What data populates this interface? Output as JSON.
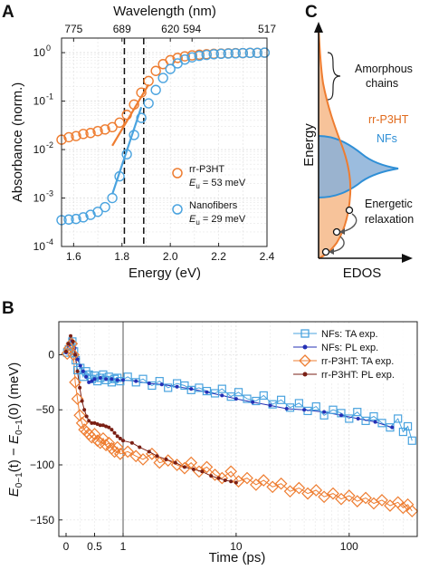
{
  "chart_data": [
    {
      "panel": "A",
      "type": "scatter",
      "xlabel": "Energy (eV)",
      "ylabel": "Absorbance (norm.)",
      "top_axis_label": "Wavelength (nm)",
      "top_ticks": [
        "775",
        "689",
        "620",
        "594",
        "517"
      ],
      "top_tick_energies": [
        1.6,
        1.8,
        2.0,
        2.09,
        2.4
      ],
      "xlim": [
        1.55,
        2.4
      ],
      "ylim": [
        0.0001,
        2
      ],
      "yscale": "log",
      "xticks": [
        "1.6",
        "1.8",
        "2.0",
        "2.2",
        "2.4"
      ],
      "xtick_values": [
        1.6,
        1.8,
        2.0,
        2.2,
        2.4
      ],
      "yticks": [
        "10",
        "10",
        "10",
        "10",
        "10"
      ],
      "ytick_exponents": [
        "-4",
        "-3",
        "-2",
        "-1",
        "0"
      ],
      "ytick_values": [
        0.0001,
        0.001,
        0.01,
        0.1,
        1
      ],
      "dashed_lines_x": [
        1.81,
        1.89
      ],
      "grid": true,
      "legend_placement": "lower-right",
      "series": [
        {
          "name": "rr-P3HT",
          "legend_line2_prefix": "E",
          "legend_line2_sub": "u",
          "legend_line2_rest": " = 53 meV",
          "color": "#ee7d31",
          "x": [
            1.55,
            1.58,
            1.61,
            1.64,
            1.67,
            1.7,
            1.73,
            1.76,
            1.79,
            1.82,
            1.85,
            1.88,
            1.91,
            1.94,
            1.97,
            2.0,
            2.03,
            2.06,
            2.09,
            2.12,
            2.15,
            2.18,
            2.21,
            2.24,
            2.27,
            2.3,
            2.33,
            2.36,
            2.39
          ],
          "y": [
            0.016,
            0.018,
            0.019,
            0.021,
            0.022,
            0.024,
            0.026,
            0.029,
            0.036,
            0.052,
            0.085,
            0.15,
            0.26,
            0.42,
            0.58,
            0.7,
            0.78,
            0.84,
            0.88,
            0.91,
            0.93,
            0.95,
            0.96,
            0.97,
            0.98,
            0.98,
            0.99,
            0.99,
            1.0
          ],
          "fit_x": [
            1.76,
            1.91
          ],
          "fit_y": [
            0.012,
            0.22
          ]
        },
        {
          "name": "Nanofibers",
          "legend_line2_prefix": "E",
          "legend_line2_sub": "u",
          "legend_line2_rest": " = 29 meV",
          "color": "#4aa3df",
          "x": [
            1.55,
            1.58,
            1.61,
            1.64,
            1.67,
            1.7,
            1.73,
            1.76,
            1.79,
            1.82,
            1.85,
            1.88,
            1.91,
            1.94,
            1.97,
            2.0,
            2.03,
            2.06,
            2.09,
            2.12,
            2.15,
            2.18,
            2.21,
            2.24,
            2.27,
            2.3,
            2.33,
            2.36,
            2.39
          ],
          "y": [
            0.00035,
            0.00036,
            0.00037,
            0.0004,
            0.00045,
            0.00052,
            0.00065,
            0.001,
            0.0028,
            0.008,
            0.02,
            0.045,
            0.09,
            0.17,
            0.3,
            0.46,
            0.6,
            0.72,
            0.8,
            0.86,
            0.9,
            0.93,
            0.95,
            0.96,
            0.97,
            0.98,
            0.99,
            0.99,
            1.0
          ],
          "fit_x": [
            1.76,
            1.88
          ],
          "fit_y": [
            0.0012,
            0.075
          ]
        }
      ]
    },
    {
      "panel": "C",
      "type": "area",
      "xlabel": "EDOS",
      "ylabel": "Energy",
      "series": [
        {
          "name": "rr-P3HT",
          "color": "#ee7d31"
        },
        {
          "name": "NFs",
          "color": "#4aa3df"
        }
      ],
      "annotations": [
        "Amorphous",
        "chains",
        "Energetic",
        "relaxation"
      ]
    },
    {
      "panel": "B",
      "type": "line",
      "xlabel": "Time (ps)",
      "ylabel_parts": {
        "E1": "E",
        "sub1": "0−1",
        "mid": "(t) − ",
        "E2": "E",
        "sub2": "0−1",
        "end": "(0)  (meV)"
      },
      "xscale": "linear 0–1, log 1–400",
      "xlim": [
        -0.1,
        400
      ],
      "ylim": [
        -165,
        30
      ],
      "xticks": [
        "0",
        "0.5",
        "1",
        "10",
        "100"
      ],
      "xtick_values": [
        0,
        0.5,
        1,
        10,
        100
      ],
      "yticks": [
        "0",
        "−50",
        "−100",
        "−150"
      ],
      "ytick_values": [
        0,
        -50,
        -100,
        -150
      ],
      "grid": true,
      "legend_placement": "top-right",
      "series": [
        {
          "name": "NFs: TA exp.",
          "color": "#4aa3df",
          "marker": "square",
          "x": [
            0.02,
            0.05,
            0.08,
            0.11,
            0.14,
            0.17,
            0.2,
            0.25,
            0.3,
            0.35,
            0.4,
            0.45,
            0.5,
            0.55,
            0.6,
            0.65,
            0.7,
            0.75,
            0.8,
            0.85,
            0.9,
            0.95,
            1.1,
            1.3,
            1.5,
            1.8,
            2.1,
            2.5,
            3,
            3.5,
            4,
            4.7,
            5.5,
            6.5,
            7.5,
            9,
            10.5,
            12.5,
            15,
            17.5,
            21,
            25,
            30,
            36,
            43,
            51,
            60,
            72,
            85,
            100,
            118,
            140,
            165,
            195,
            230,
            270,
            300,
            330,
            360
          ],
          "y": [
            2,
            5,
            8,
            12,
            3,
            -5,
            -14,
            -12,
            -20,
            -15,
            -18,
            -22,
            -19,
            -24,
            -21,
            -18,
            -23,
            -20,
            -25,
            -22,
            -21,
            -24,
            -20,
            -25,
            -22,
            -28,
            -24,
            -30,
            -26,
            -28,
            -32,
            -30,
            -33,
            -35,
            -31,
            -38,
            -34,
            -40,
            -42,
            -37,
            -45,
            -41,
            -48,
            -44,
            -51,
            -47,
            -55,
            -50,
            -53,
            -58,
            -52,
            -60,
            -56,
            -62,
            -66,
            -58,
            -70,
            -65,
            -78
          ]
        },
        {
          "name": "NFs: PL exp.",
          "color": "#2430b5",
          "marker": "dot",
          "x": [
            0,
            0.05,
            0.1,
            0.15,
            0.2,
            0.25,
            0.3,
            0.35,
            0.4,
            0.45,
            0.5,
            0.6,
            0.7,
            0.8,
            0.9,
            1.0,
            1.3,
            1.7,
            2.2,
            3,
            4,
            5.5,
            7.5,
            10,
            14,
            20,
            28,
            40,
            60,
            85,
            120,
            170,
            240
          ],
          "y": [
            2,
            9,
            13,
            6,
            -4,
            -10,
            -15,
            -20,
            -25,
            -24,
            -22,
            -21,
            -22,
            -22,
            -23,
            -23,
            -24,
            -26,
            -27,
            -29,
            -31,
            -34,
            -37,
            -40,
            -43,
            -46,
            -49,
            -50,
            -52,
            -55,
            -58,
            -61,
            -66
          ]
        },
        {
          "name": "rr-P3HT: TA exp.",
          "color": "#ee7d31",
          "marker": "diamond",
          "x": [
            0.02,
            0.06,
            0.1,
            0.13,
            0.16,
            0.2,
            0.24,
            0.28,
            0.32,
            0.36,
            0.4,
            0.45,
            0.5,
            0.55,
            0.6,
            0.65,
            0.7,
            0.75,
            0.8,
            0.85,
            0.9,
            0.95,
            1.1,
            1.3,
            1.5,
            1.8,
            2.1,
            2.5,
            3,
            3.5,
            4,
            4.7,
            5.5,
            6.5,
            7.5,
            9,
            10.5,
            12.5,
            15,
            17.5,
            21,
            25,
            30,
            36,
            43,
            51,
            60,
            72,
            85,
            100,
            118,
            140,
            165,
            195,
            230,
            270,
            300,
            330,
            360
          ],
          "y": [
            1,
            6,
            10,
            0,
            -25,
            -40,
            -55,
            -62,
            -68,
            -70,
            -72,
            -75,
            -72,
            -78,
            -80,
            -76,
            -82,
            -80,
            -85,
            -88,
            -84,
            -90,
            -88,
            -92,
            -95,
            -90,
            -98,
            -96,
            -100,
            -103,
            -98,
            -106,
            -102,
            -109,
            -112,
            -106,
            -115,
            -112,
            -118,
            -114,
            -120,
            -117,
            -124,
            -121,
            -126,
            -123,
            -129,
            -126,
            -131,
            -128,
            -133,
            -130,
            -135,
            -132,
            -137,
            -134,
            -139,
            -136,
            -142
          ]
        },
        {
          "name": "rr-P3HT: PL exp.",
          "color": "#7a1f14",
          "marker": "dot",
          "x": [
            0,
            0.04,
            0.08,
            0.12,
            0.16,
            0.2,
            0.24,
            0.28,
            0.32,
            0.36,
            0.4,
            0.45,
            0.5,
            0.55,
            0.6,
            0.65,
            0.7,
            0.75,
            0.8,
            0.85,
            0.9,
            0.95,
            1.0,
            1.2,
            1.4,
            1.7,
            2.0,
            2.4,
            2.9,
            3.5,
            4.2,
            5,
            6,
            7,
            8,
            9,
            10
          ],
          "y": [
            3,
            10,
            17,
            12,
            0,
            -15,
            -30,
            -42,
            -50,
            -56,
            -60,
            -62,
            -62,
            -63,
            -64,
            -64,
            -65,
            -66,
            -68,
            -71,
            -74,
            -76,
            -78,
            -80,
            -84,
            -88,
            -92,
            -95,
            -98,
            -102,
            -104,
            -106,
            -110,
            -112,
            -114,
            -115,
            -116
          ]
        }
      ]
    }
  ]
}
